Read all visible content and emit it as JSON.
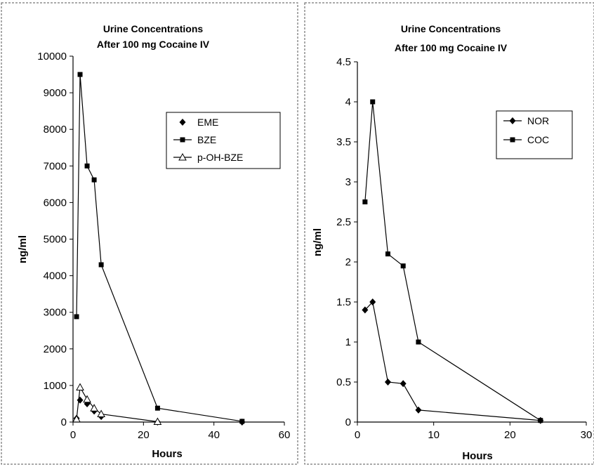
{
  "chart_data": [
    {
      "type": "line",
      "title_lines": [
        "Urine Concentrations",
        "After 100 mg Cocaine IV"
      ],
      "xlabel": "Hours",
      "ylabel": "ng/ml",
      "xlim": [
        0,
        60
      ],
      "ylim": [
        0,
        10000
      ],
      "x_ticks": [
        0,
        20,
        40,
        60
      ],
      "y_ticks": [
        0,
        1000,
        2000,
        3000,
        4000,
        5000,
        6000,
        7000,
        8000,
        9000,
        10000
      ],
      "legend_position": "right",
      "series": [
        {
          "name": "EME",
          "marker": "diamond",
          "line": false,
          "x": [
            1,
            2,
            4,
            6,
            8,
            24,
            48
          ],
          "y": [
            100,
            600,
            500,
            300,
            150,
            0,
            0
          ]
        },
        {
          "name": "BZE",
          "marker": "square",
          "line": true,
          "x": [
            1,
            2,
            4,
            6,
            8,
            24,
            48
          ],
          "y": [
            2880,
            9500,
            7000,
            6620,
            4300,
            380,
            20
          ]
        },
        {
          "name": "p-OH-BZE",
          "marker": "triangle",
          "line": true,
          "x": [
            1,
            2,
            4,
            6,
            8,
            24
          ],
          "y": [
            80,
            950,
            620,
            380,
            220,
            10
          ]
        }
      ]
    },
    {
      "type": "line",
      "title_lines": [
        "Urine Concentrations",
        "After 100 mg Cocaine IV"
      ],
      "xlabel": "Hours",
      "ylabel": "ng/ml",
      "xlim": [
        0,
        30
      ],
      "ylim": [
        0,
        4.5
      ],
      "x_ticks": [
        0,
        10,
        20,
        30
      ],
      "y_ticks": [
        0,
        0.5,
        1,
        1.5,
        2,
        2.5,
        3,
        3.5,
        4,
        4.5
      ],
      "legend_position": "right",
      "series": [
        {
          "name": "NOR",
          "marker": "diamond",
          "line": true,
          "x": [
            1,
            2,
            4,
            6,
            8,
            24
          ],
          "y": [
            1.4,
            1.5,
            0.5,
            0.48,
            0.15,
            0.02
          ]
        },
        {
          "name": "COC",
          "marker": "square",
          "line": true,
          "x": [
            1,
            2,
            4,
            6,
            8,
            24
          ],
          "y": [
            2.75,
            4.0,
            2.1,
            1.95,
            1.0,
            0.02
          ]
        }
      ]
    }
  ]
}
